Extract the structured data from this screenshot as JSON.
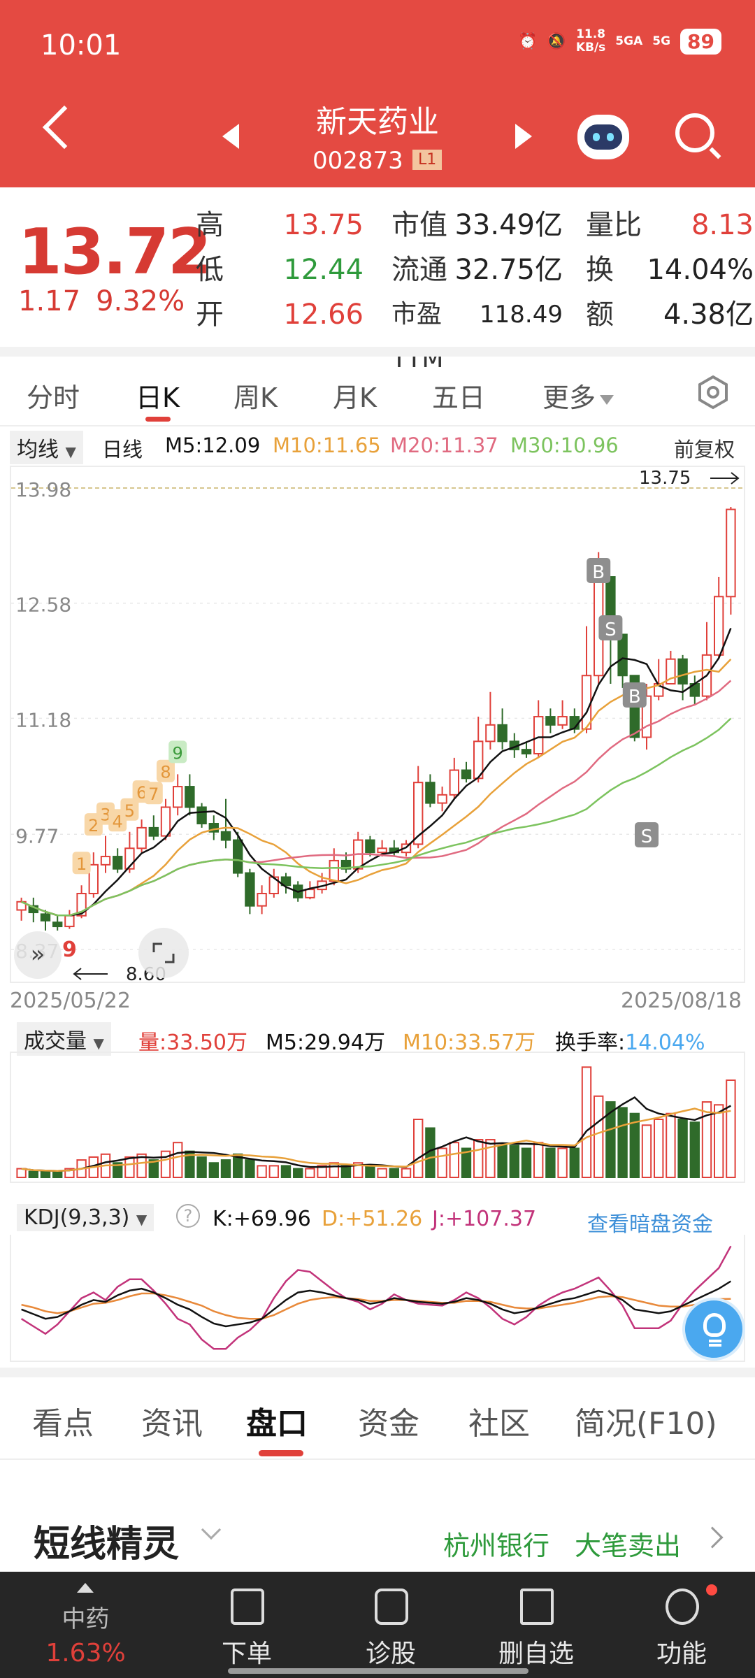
{
  "status_bar": {
    "time": "10:01",
    "net_speed": "11.8\nKB/s",
    "net_top": "11.8",
    "net_bottom": "KB/s",
    "sig1": "5GA",
    "sig2": "5G",
    "battery": "89"
  },
  "header": {
    "name": "新天药业",
    "code": "002873",
    "level": "L1"
  },
  "quote": {
    "price": "13.72",
    "change": "1.17",
    "change_pct": "9.32%",
    "rows": [
      {
        "l1": "高",
        "v1": "13.75",
        "c1": "red",
        "l2": "市值",
        "v2": "33.49亿",
        "l3": "量比",
        "v3": "8.13",
        "c3": "red"
      },
      {
        "l1": "低",
        "v1": "12.44",
        "c1": "green",
        "l2": "流通",
        "v2": "32.75亿",
        "l3": "换",
        "v3": "14.04%",
        "c3": "black"
      },
      {
        "l1": "开",
        "v1": "12.66",
        "c1": "red",
        "l2": "市盈TTM",
        "v2": "118.49",
        "l3": "额",
        "v3": "4.38亿",
        "c3": "black"
      }
    ]
  },
  "chart_tabs": {
    "t1": "分时",
    "t2": "日K",
    "t3": "周K",
    "t4": "月K",
    "t5": "五日",
    "t6": "更多"
  },
  "ma_legend": {
    "btn": "均线",
    "period": "日线",
    "m5": "M5:12.09",
    "m10": "M10:11.65",
    "m20": "M20:11.37",
    "m30": "M30:10.96",
    "adj": "前复权"
  },
  "colors": {
    "up": "#e0403a",
    "down": "#2f6b2a",
    "m5": "#111111",
    "m10": "#e8a13a",
    "m20": "#e06a80",
    "m30": "#7cc35e",
    "header_bg": "#e44a42"
  },
  "dates": {
    "start": "2025/05/22",
    "end": "2025/08/18"
  },
  "volume_legend": {
    "btn": "成交量",
    "vol": "量:33.50万",
    "m5": "M5:29.94万",
    "m10": "M10:33.57万",
    "turn_label": "换手率:",
    "turn_value": "14.04%"
  },
  "kdj_legend": {
    "btn": "KDJ(9,3,3)",
    "k": "K:+69.96",
    "d": "D:+51.26",
    "j": "J:+107.37",
    "link": "查看暗盘资金"
  },
  "bottom_tabs": {
    "t1": "看点",
    "t2": "资讯",
    "t3": "盘口",
    "t4": "资金",
    "t5": "社区",
    "t6": "简况(F10)"
  },
  "spirit": {
    "title": "短线精灵",
    "r1": "杭州银行",
    "r2": "大笔卖出"
  },
  "bottom_nav": {
    "index_name": "中药",
    "index_pct": "1.63%",
    "n1": "下单",
    "n2": "诊股",
    "n3": "删自选",
    "n4": "功能"
  },
  "chart_data": {
    "type": "candlestick",
    "y_ticks": [
      "13.98",
      "12.58",
      "11.18",
      "9.77",
      "8.37"
    ],
    "ylim": [
      8.37,
      13.98
    ],
    "high_marker": "13.75",
    "low_marker": "8.60",
    "signals": {
      "sequence": [
        "1",
        "2",
        "3",
        "4",
        "5",
        "6",
        "7",
        "8",
        "9"
      ],
      "bottom_mark": "9",
      "buy": "B",
      "sell": "S"
    },
    "candles": [
      [
        8.85,
        8.95,
        9.0,
        8.72
      ],
      [
        8.9,
        8.82,
        9.0,
        8.7
      ],
      [
        8.8,
        8.72,
        8.85,
        8.6
      ],
      [
        8.7,
        8.65,
        8.78,
        8.6
      ],
      [
        8.65,
        8.78,
        8.85,
        8.62
      ],
      [
        8.78,
        9.05,
        9.15,
        8.75
      ],
      [
        9.05,
        9.4,
        9.55,
        9.0
      ],
      [
        9.4,
        9.5,
        9.75,
        9.3
      ],
      [
        9.5,
        9.35,
        9.6,
        9.3
      ],
      [
        9.35,
        9.6,
        9.8,
        9.3
      ],
      [
        9.6,
        9.85,
        9.95,
        9.55
      ],
      [
        9.85,
        9.75,
        10.0,
        9.7
      ],
      [
        9.75,
        10.1,
        10.2,
        9.7
      ],
      [
        10.1,
        10.35,
        10.5,
        10.0
      ],
      [
        10.35,
        10.1,
        10.5,
        10.0
      ],
      [
        10.1,
        9.9,
        10.15,
        9.85
      ],
      [
        9.9,
        9.8,
        10.0,
        9.7
      ],
      [
        9.8,
        9.7,
        10.2,
        9.6
      ],
      [
        9.7,
        9.3,
        9.8,
        9.25
      ],
      [
        9.3,
        8.9,
        9.35,
        8.8
      ],
      [
        8.9,
        9.05,
        9.15,
        8.8
      ],
      [
        9.05,
        9.25,
        9.35,
        9.0
      ],
      [
        9.25,
        9.15,
        9.3,
        9.05
      ],
      [
        9.15,
        9.0,
        9.2,
        8.95
      ],
      [
        9.0,
        9.1,
        9.2,
        8.98
      ],
      [
        9.1,
        9.2,
        9.3,
        9.05
      ],
      [
        9.2,
        9.45,
        9.6,
        9.15
      ],
      [
        9.45,
        9.35,
        9.55,
        9.3
      ],
      [
        9.35,
        9.7,
        9.8,
        9.3
      ],
      [
        9.7,
        9.55,
        9.75,
        9.5
      ],
      [
        9.55,
        9.6,
        9.7,
        9.5
      ],
      [
        9.6,
        9.55,
        9.7,
        9.5
      ],
      [
        9.55,
        9.65,
        9.7,
        9.5
      ],
      [
        9.65,
        10.4,
        10.6,
        9.6
      ],
      [
        10.4,
        10.15,
        10.5,
        10.1
      ],
      [
        10.15,
        10.25,
        10.35,
        10.05
      ],
      [
        10.25,
        10.55,
        10.7,
        10.2
      ],
      [
        10.55,
        10.45,
        10.65,
        10.4
      ],
      [
        10.45,
        10.9,
        11.2,
        10.4
      ],
      [
        10.9,
        11.1,
        11.5,
        10.8
      ],
      [
        11.1,
        10.9,
        11.3,
        10.8
      ],
      [
        10.9,
        10.8,
        11.0,
        10.7
      ],
      [
        10.8,
        10.75,
        10.9,
        10.7
      ],
      [
        10.75,
        11.2,
        11.4,
        10.7
      ],
      [
        11.2,
        11.1,
        11.3,
        11.0
      ],
      [
        11.1,
        11.2,
        11.4,
        11.05
      ],
      [
        11.2,
        11.05,
        11.3,
        11.0
      ],
      [
        11.05,
        11.7,
        12.3,
        11.0
      ],
      [
        11.7,
        12.9,
        13.2,
        11.6
      ],
      [
        12.9,
        12.2,
        12.6,
        11.6
      ],
      [
        12.2,
        11.7,
        11.9,
        11.55
      ],
      [
        11.7,
        10.95,
        11.3,
        10.9
      ],
      [
        10.95,
        11.45,
        11.6,
        10.8
      ],
      [
        11.45,
        11.6,
        11.9,
        11.4
      ],
      [
        11.6,
        11.9,
        12.0,
        11.6
      ],
      [
        11.9,
        11.6,
        11.95,
        11.4
      ],
      [
        11.6,
        11.45,
        11.7,
        11.35
      ],
      [
        11.45,
        11.95,
        12.35,
        11.4
      ],
      [
        11.95,
        12.66,
        12.9,
        11.9
      ],
      [
        12.66,
        13.72,
        13.75,
        12.44
      ]
    ],
    "volume": [
      3,
      2,
      2,
      2,
      3,
      6,
      7,
      8,
      5,
      7,
      8,
      6,
      9,
      12,
      9,
      7,
      5,
      6,
      8,
      6,
      4,
      4,
      4,
      3,
      3,
      4,
      5,
      4,
      5,
      4,
      3,
      3,
      3,
      20,
      17,
      10,
      12,
      10,
      13,
      13,
      11,
      11,
      10,
      12,
      10,
      10,
      10,
      38,
      28,
      26,
      24,
      22,
      18,
      20,
      22,
      20,
      19,
      26,
      25,
      33.5
    ],
    "kdj_k": [
      40,
      35,
      30,
      32,
      38,
      45,
      50,
      48,
      55,
      60,
      62,
      58,
      52,
      45,
      40,
      32,
      25,
      22,
      24,
      26,
      30,
      40,
      50,
      58,
      60,
      58,
      55,
      52,
      50,
      46,
      48,
      52,
      50,
      48,
      47,
      46,
      48,
      52,
      50,
      46,
      40,
      36,
      38,
      42,
      46,
      50,
      52,
      56,
      60,
      56,
      50,
      40,
      38,
      36,
      38,
      44,
      50,
      56,
      62,
      69.96
    ],
    "kdj_d": [
      45,
      42,
      38,
      36,
      38,
      42,
      46,
      47,
      50,
      54,
      57,
      57,
      55,
      52,
      48,
      44,
      38,
      34,
      31,
      30,
      30,
      34,
      40,
      46,
      50,
      52,
      53,
      52,
      51,
      49,
      49,
      50,
      50,
      49,
      48,
      47,
      47,
      49,
      49,
      48,
      45,
      42,
      41,
      41,
      43,
      45,
      47,
      50,
      53,
      54,
      53,
      50,
      47,
      44,
      43,
      43,
      45,
      48,
      51,
      51.26
    ],
    "kdj_j": [
      30,
      22,
      14,
      24,
      38,
      52,
      58,
      50,
      64,
      72,
      72,
      60,
      46,
      30,
      24,
      8,
      -2,
      -2,
      10,
      18,
      30,
      52,
      70,
      82,
      80,
      70,
      60,
      52,
      48,
      40,
      46,
      56,
      50,
      46,
      45,
      44,
      50,
      58,
      52,
      42,
      30,
      24,
      32,
      44,
      52,
      58,
      62,
      68,
      74,
      60,
      44,
      20,
      20,
      20,
      28,
      46,
      60,
      72,
      84,
      107.37
    ]
  }
}
